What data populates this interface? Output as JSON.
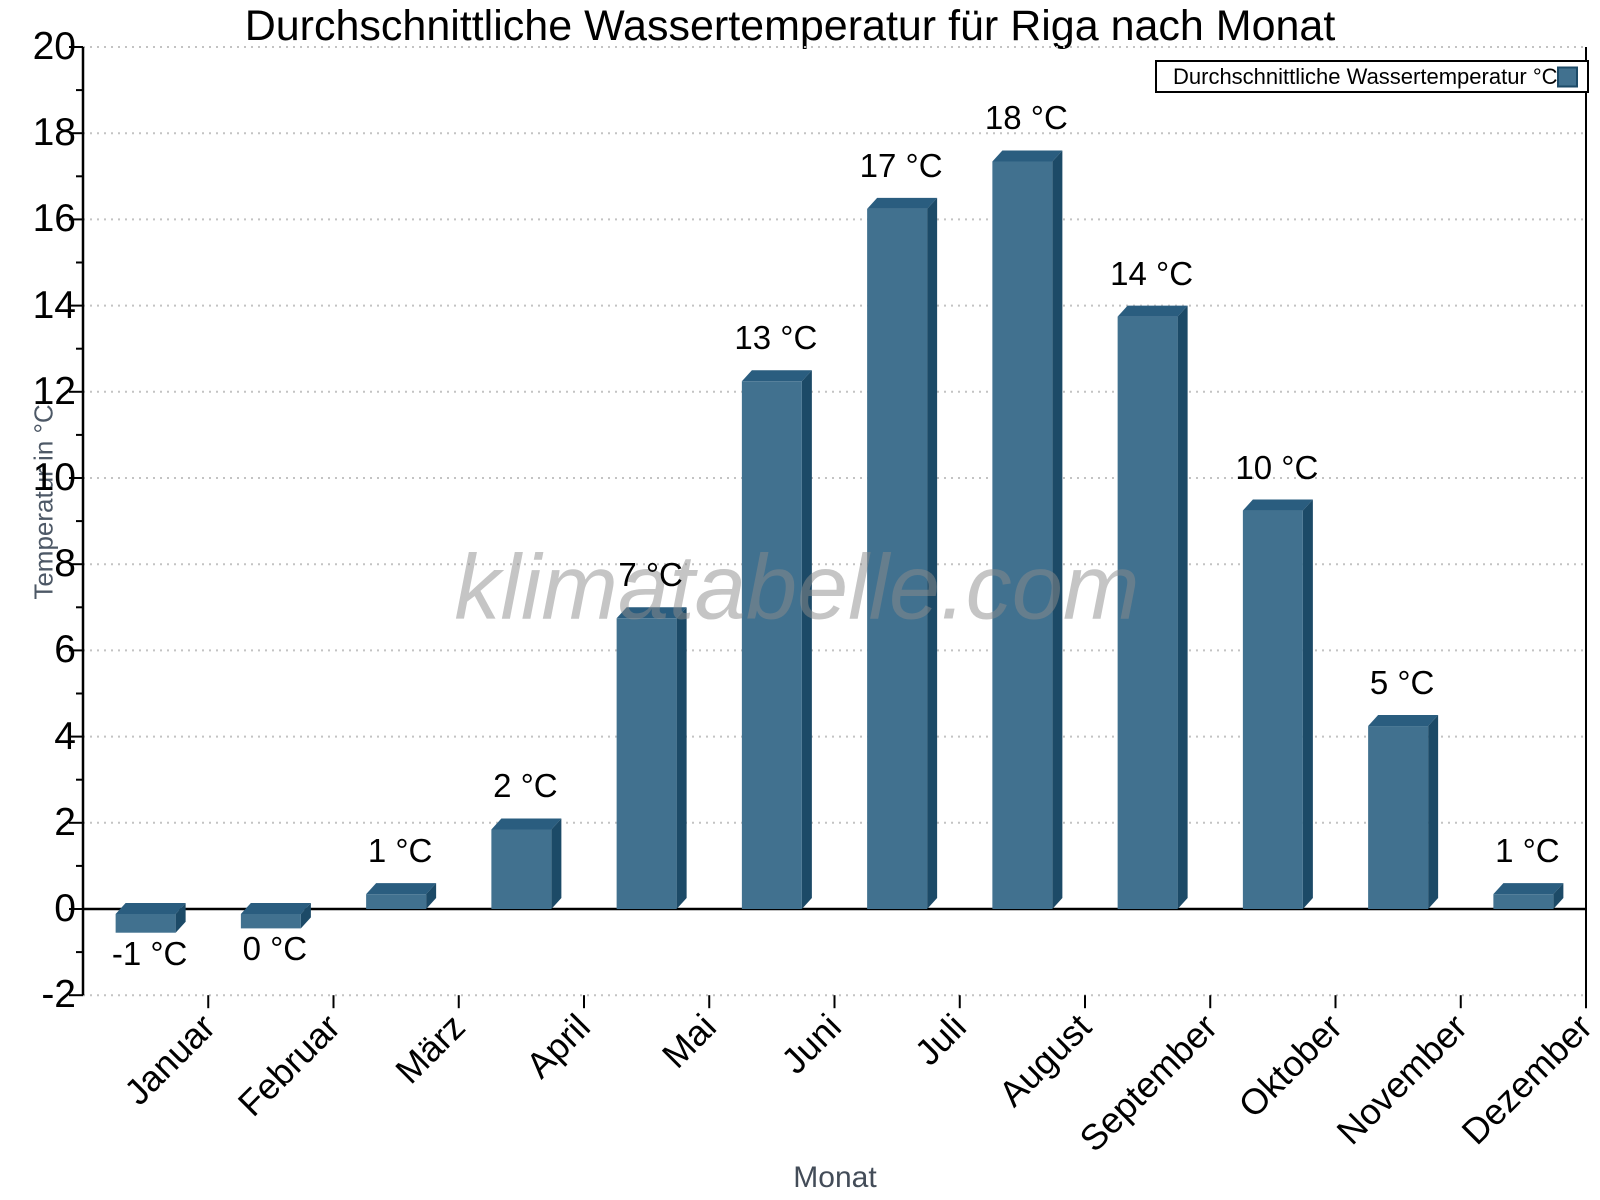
{
  "title": "Durchschnittliche Wassertemperatur für Riga nach Monat",
  "watermark": "klimatabelle.com",
  "legend": {
    "label": "Durchschnittliche Wassertemperatur °C",
    "swatch_color": "#41718f",
    "swatch_border": "#1c4a67"
  },
  "chart_data": {
    "type": "bar",
    "title": "Durchschnittliche Wassertemperatur für Riga nach Monat",
    "xlabel": "Monat",
    "ylabel": "Temperatur in °C",
    "ylim": [
      -2,
      20
    ],
    "ytick_step": 2,
    "grid": "dotted horizontal lines at every 2 °C",
    "legend_position": "top-right",
    "categories": [
      "Januar",
      "Februar",
      "März",
      "April",
      "Mai",
      "Juni",
      "Juli",
      "August",
      "September",
      "Oktober",
      "November",
      "Dezember"
    ],
    "series": [
      {
        "name": "Durchschnittliche Wassertemperatur °C",
        "values": [
          -0.55,
          -0.45,
          0.6,
          2.1,
          7.0,
          12.5,
          16.5,
          17.6,
          14.0,
          9.5,
          4.5,
          0.6
        ],
        "bar_labels": [
          "-1 °C",
          "0 °C",
          "1 °C",
          "2 °C",
          "7 °C",
          "13 °C",
          "17 °C",
          "18 °C",
          "14 °C",
          "10 °C",
          "5 °C",
          "1 °C"
        ]
      }
    ],
    "y_tick_labels": [
      "20",
      "18",
      "16",
      "14",
      "12",
      "10",
      "8",
      "6",
      "4",
      "2",
      "0",
      "-2"
    ],
    "colors": {
      "bar_face": "#41718f",
      "bar_top": "#2a5d7f",
      "bar_side": "#1c4a67",
      "gridline": "#c3c3c3",
      "axis": "#000000",
      "axis_title": "#4d5866",
      "watermark": "#8c8c8c"
    }
  }
}
